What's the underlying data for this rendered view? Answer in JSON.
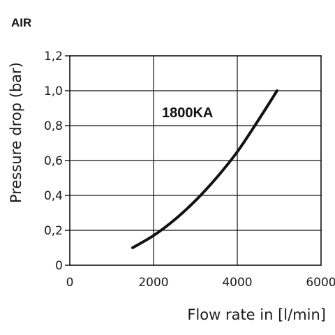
{
  "chart_data": {
    "type": "line",
    "title": "AIR",
    "xlabel": "Flow rate in [l/min]",
    "ylabel": "Pressure drop (bar)",
    "xlim": [
      0,
      6000
    ],
    "ylim": [
      0,
      1.2
    ],
    "x_ticks": [
      0,
      2000,
      4000,
      6000
    ],
    "x_tick_labels": [
      "0",
      "2000",
      "4000",
      "6000"
    ],
    "y_ticks": [
      0,
      0.2,
      0.4,
      0.6,
      0.8,
      1.0,
      1.2
    ],
    "y_tick_labels": [
      "0",
      "0,2",
      "0,4",
      "0,6",
      "0,8",
      "1,0",
      "1,2"
    ],
    "grid": true,
    "series": [
      {
        "name": "1800KA",
        "color": "#111111",
        "x": [
          1500,
          2000,
          2500,
          3000,
          3500,
          4000,
          4500,
          4950
        ],
        "y": [
          0.1,
          0.17,
          0.26,
          0.37,
          0.5,
          0.65,
          0.83,
          1.0
        ]
      }
    ]
  }
}
